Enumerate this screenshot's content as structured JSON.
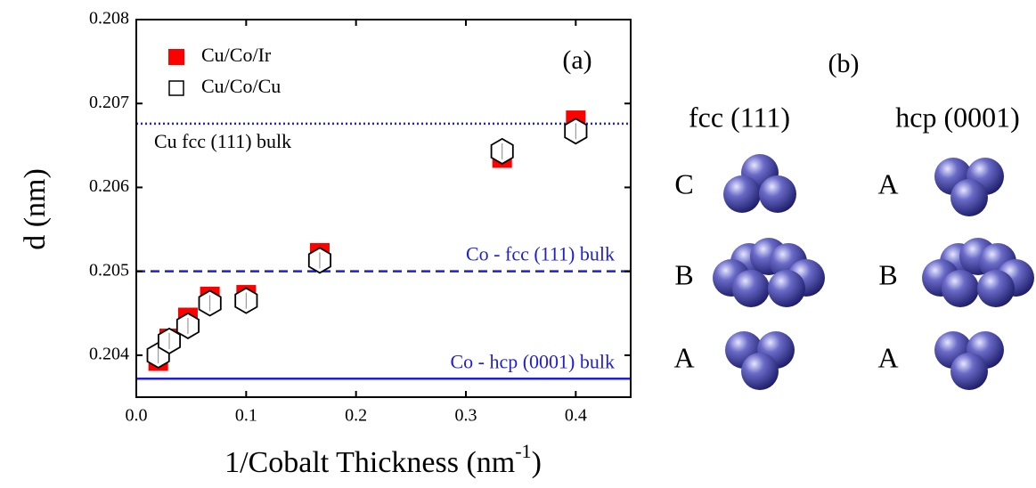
{
  "chart_data": {
    "type": "scatter",
    "panel_label": "(a)",
    "ylabel": "d (nm)",
    "xlabel": {
      "text": "1/Cobalt Thickness (nm",
      "sup": "-1",
      "close": ")"
    },
    "xlim": [
      0,
      0.45
    ],
    "ylim": [
      0.2035,
      0.208
    ],
    "xticks": [
      {
        "value": 0,
        "label": "0.0"
      },
      0.1,
      0.2,
      0.3,
      0.4
    ],
    "yticks": [
      0.204,
      0.205,
      0.206,
      0.207,
      0.208
    ],
    "series": [
      {
        "name": "Cu/Co/Ir",
        "color": "#ff0000",
        "marker": "filled-square",
        "x": [
          0.02,
          0.03,
          0.047,
          0.067,
          0.1,
          0.167,
          0.333,
          0.4
        ],
        "values": [
          0.20393,
          0.2042,
          0.20445,
          0.2047,
          0.20472,
          0.20522,
          0.20635,
          0.2068
        ]
      },
      {
        "name": "Cu/Co/Cu",
        "color": "#000000",
        "marker": "open-square",
        "x": [
          0.02,
          0.03,
          0.047,
          0.067,
          0.1,
          0.167,
          0.333,
          0.4
        ],
        "values": [
          0.204,
          0.20417,
          0.20435,
          0.20462,
          0.20465,
          0.20513,
          0.20643,
          0.20667
        ]
      }
    ],
    "reference_lines": [
      {
        "label": "Cu fcc (111) bulk",
        "value": 0.20676,
        "style": "dotted",
        "color": "#1f1fd6",
        "label_color": "#000000",
        "label_side": "left"
      },
      {
        "label": "Co - fcc (111) bulk",
        "value": 0.205,
        "style": "dashed",
        "color": "#1f1fd6",
        "label_color": "#1f1fd6",
        "label_side": "right"
      },
      {
        "label": "Co - hcp (0001) bulk",
        "value": 0.20372,
        "style": "solid",
        "color": "#1f1fd6",
        "label_color": "#1f1fd6",
        "label_side": "right"
      }
    ]
  },
  "panel_b": {
    "label": "(b)",
    "columns": [
      {
        "title": "fcc (111)",
        "layers": [
          "C",
          "B",
          "A"
        ]
      },
      {
        "title": "hcp (0001)",
        "layers": [
          "A",
          "B",
          "A"
        ]
      }
    ]
  }
}
